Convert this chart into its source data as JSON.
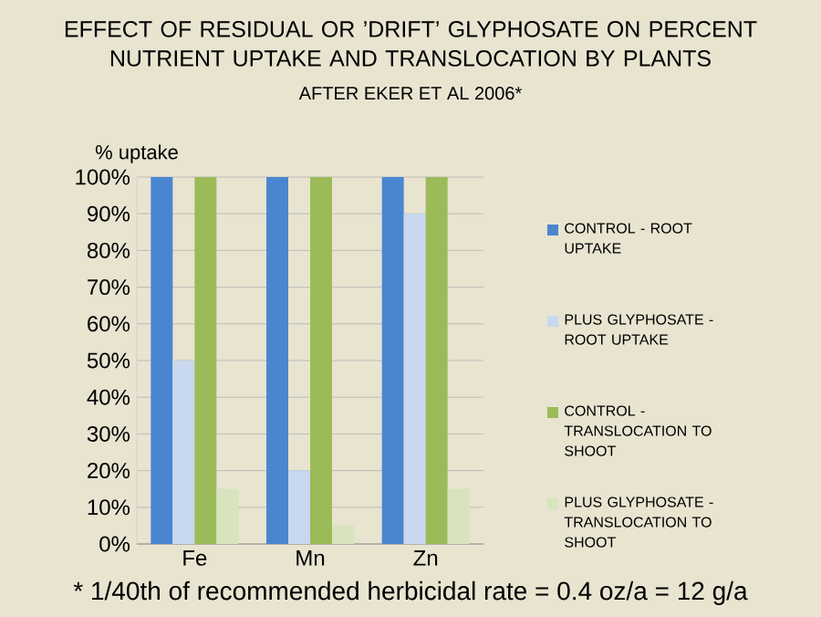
{
  "chart_data": {
    "type": "bar",
    "title": "EFFECT OF RESIDUAL OR ’DRIFT’ GLYPHOSATE ON PERCENT NUTRIENT UPTAKE AND TRANSLOCATION BY PLANTS",
    "subtitle": "AFTER EKER ET AL 2006*",
    "ylabel": "% uptake",
    "categories": [
      "Fe",
      "Mn",
      "Zn"
    ],
    "series": [
      {
        "name": "CONTROL - ROOT UPTAKE",
        "color": "#4a86d0",
        "values": [
          100,
          100,
          100
        ]
      },
      {
        "name": "PLUS GLYPHOSATE - ROOT UPTAKE",
        "color": "#c8d8ee",
        "values": [
          50,
          20,
          90
        ]
      },
      {
        "name": "CONTROL - TRANSLOCATION TO SHOOT",
        "color": "#9bbb59",
        "values": [
          100,
          100,
          100
        ]
      },
      {
        "name": "PLUS GLYPHOSATE - TRANSLOCATION TO SHOOT",
        "color": "#d7e4bd",
        "values": [
          15,
          5,
          15
        ]
      }
    ],
    "ylim": [
      0,
      100
    ],
    "yticks": [
      {
        "value": 0,
        "label": "0%"
      },
      {
        "value": 10,
        "label": "10%"
      },
      {
        "value": 20,
        "label": "20%"
      },
      {
        "value": 30,
        "label": "30%"
      },
      {
        "value": 40,
        "label": "40%"
      },
      {
        "value": 50,
        "label": "50%"
      },
      {
        "value": 60,
        "label": "60%"
      },
      {
        "value": 70,
        "label": "70%"
      },
      {
        "value": 80,
        "label": "80%"
      },
      {
        "value": 90,
        "label": "90%"
      },
      {
        "value": 100,
        "label": "100%"
      }
    ],
    "grid": "y",
    "legend": "right",
    "annotations": [
      "* 1/40th of recommended herbicidal rate = 0.4 oz/a = 12 g/a"
    ]
  }
}
